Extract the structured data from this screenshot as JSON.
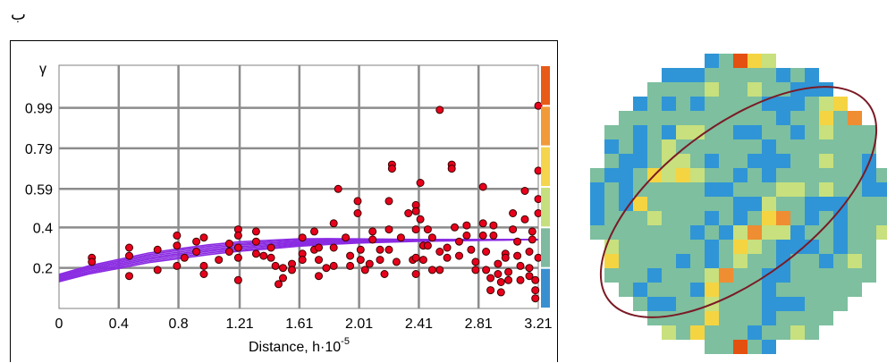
{
  "panel_label": "ب",
  "chart_data": {
    "type": "scatter",
    "title": "",
    "xlabel": "Distance, h·10",
    "xlabel_exponent": "-5",
    "ylabel": "γ",
    "xlim": [
      0,
      3.21
    ],
    "ylim": [
      0,
      1.2
    ],
    "x_ticks": [
      "0",
      "0.4",
      "0.8",
      "1.21",
      "1.61",
      "2.01",
      "2.41",
      "2.81",
      "3.21"
    ],
    "x_tick_values": [
      0,
      0.4,
      0.8,
      1.21,
      1.61,
      2.01,
      2.41,
      2.81,
      3.21
    ],
    "y_ticks": [
      "0.2",
      "0.4",
      "0.59",
      "0.79",
      "0.99"
    ],
    "y_tick_values": [
      0.2,
      0.4,
      0.59,
      0.79,
      0.99
    ],
    "grid": true,
    "point_color": "#e8001c",
    "curve_color": "#8a2be2",
    "points": [
      [
        0.22,
        0.25
      ],
      [
        0.22,
        0.23
      ],
      [
        0.47,
        0.3
      ],
      [
        0.47,
        0.26
      ],
      [
        0.47,
        0.16
      ],
      [
        0.66,
        0.29
      ],
      [
        0.66,
        0.19
      ],
      [
        0.79,
        0.36
      ],
      [
        0.79,
        0.31
      ],
      [
        0.79,
        0.21
      ],
      [
        0.84,
        0.25
      ],
      [
        0.92,
        0.33
      ],
      [
        0.92,
        0.28
      ],
      [
        0.97,
        0.35
      ],
      [
        0.97,
        0.21
      ],
      [
        0.97,
        0.17
      ],
      [
        1.07,
        0.24
      ],
      [
        1.14,
        0.32
      ],
      [
        1.14,
        0.28
      ],
      [
        1.2,
        0.39
      ],
      [
        1.2,
        0.36
      ],
      [
        1.2,
        0.3
      ],
      [
        1.2,
        0.25
      ],
      [
        1.2,
        0.14
      ],
      [
        1.32,
        0.38
      ],
      [
        1.32,
        0.33
      ],
      [
        1.32,
        0.27
      ],
      [
        1.37,
        0.26
      ],
      [
        1.42,
        0.3
      ],
      [
        1.42,
        0.25
      ],
      [
        1.45,
        0.21
      ],
      [
        1.47,
        0.12
      ],
      [
        1.5,
        0.2
      ],
      [
        1.5,
        0.15
      ],
      [
        1.56,
        0.22
      ],
      [
        1.56,
        0.19
      ],
      [
        1.63,
        0.35
      ],
      [
        1.63,
        0.27
      ],
      [
        1.63,
        0.24
      ],
      [
        1.71,
        0.38
      ],
      [
        1.71,
        0.29
      ],
      [
        1.74,
        0.3
      ],
      [
        1.74,
        0.24
      ],
      [
        1.74,
        0.16
      ],
      [
        1.79,
        0.2
      ],
      [
        1.84,
        0.42
      ],
      [
        1.84,
        0.3
      ],
      [
        1.84,
        0.21
      ],
      [
        1.87,
        0.59
      ],
      [
        1.92,
        0.35
      ],
      [
        1.95,
        0.26
      ],
      [
        1.95,
        0.21
      ],
      [
        2.0,
        0.53
      ],
      [
        2.0,
        0.47
      ],
      [
        2.02,
        0.29
      ],
      [
        2.02,
        0.24
      ],
      [
        2.05,
        0.19
      ],
      [
        2.08,
        0.22
      ],
      [
        2.1,
        0.38
      ],
      [
        2.1,
        0.34
      ],
      [
        2.15,
        0.29
      ],
      [
        2.15,
        0.24
      ],
      [
        2.18,
        0.17
      ],
      [
        2.21,
        0.53
      ],
      [
        2.21,
        0.39
      ],
      [
        2.21,
        0.29
      ],
      [
        2.23,
        0.71
      ],
      [
        2.23,
        0.69
      ],
      [
        2.26,
        0.23
      ],
      [
        2.29,
        0.35
      ],
      [
        2.34,
        0.47
      ],
      [
        2.37,
        0.24
      ],
      [
        2.39,
        0.51
      ],
      [
        2.39,
        0.48
      ],
      [
        2.39,
        0.39
      ],
      [
        2.39,
        0.25
      ],
      [
        2.39,
        0.17
      ],
      [
        2.42,
        0.62
      ],
      [
        2.42,
        0.44
      ],
      [
        2.44,
        0.31
      ],
      [
        2.44,
        0.24
      ],
      [
        2.47,
        0.39
      ],
      [
        2.47,
        0.31
      ],
      [
        2.5,
        0.35
      ],
      [
        2.5,
        0.19
      ],
      [
        2.55,
        0.98
      ],
      [
        2.55,
        0.28
      ],
      [
        2.55,
        0.19
      ],
      [
        2.6,
        0.3
      ],
      [
        2.6,
        0.25
      ],
      [
        2.63,
        0.71
      ],
      [
        2.63,
        0.69
      ],
      [
        2.65,
        0.4
      ],
      [
        2.68,
        0.33
      ],
      [
        2.68,
        0.26
      ],
      [
        2.73,
        0.41
      ],
      [
        2.73,
        0.36
      ],
      [
        2.76,
        0.29
      ],
      [
        2.79,
        0.23
      ],
      [
        2.79,
        0.19
      ],
      [
        2.84,
        0.6
      ],
      [
        2.84,
        0.42
      ],
      [
        2.84,
        0.36
      ],
      [
        2.86,
        0.28
      ],
      [
        2.86,
        0.19
      ],
      [
        2.89,
        0.15
      ],
      [
        2.89,
        0.09
      ],
      [
        2.91,
        0.41
      ],
      [
        2.91,
        0.36
      ],
      [
        2.94,
        0.22
      ],
      [
        2.94,
        0.17
      ],
      [
        2.96,
        0.13
      ],
      [
        2.96,
        0.08
      ],
      [
        2.99,
        0.27
      ],
      [
        2.99,
        0.25
      ],
      [
        3.01,
        0.18
      ],
      [
        3.01,
        0.14
      ],
      [
        3.04,
        0.47
      ],
      [
        3.04,
        0.39
      ],
      [
        3.07,
        0.33
      ],
      [
        3.07,
        0.26
      ],
      [
        3.09,
        0.21
      ],
      [
        3.09,
        0.14
      ],
      [
        3.12,
        0.58
      ],
      [
        3.12,
        0.44
      ],
      [
        3.15,
        0.28
      ],
      [
        3.15,
        0.2
      ],
      [
        3.15,
        0.16
      ],
      [
        3.17,
        0.38
      ],
      [
        3.17,
        0.34
      ],
      [
        3.19,
        0.14
      ],
      [
        3.19,
        0.09
      ],
      [
        3.19,
        0.05
      ],
      [
        3.21,
        0.25
      ],
      [
        3.21,
        0.47
      ],
      [
        3.21,
        0.54
      ],
      [
        3.21,
        0.68
      ],
      [
        3.21,
        1.0
      ]
    ],
    "curve_samples": [
      [
        0.0,
        0.15
      ],
      [
        0.2,
        0.19
      ],
      [
        0.4,
        0.22
      ],
      [
        0.6,
        0.25
      ],
      [
        0.8,
        0.27
      ],
      [
        1.0,
        0.29
      ],
      [
        1.2,
        0.305
      ],
      [
        1.4,
        0.315
      ],
      [
        1.6,
        0.325
      ],
      [
        1.8,
        0.33
      ],
      [
        2.0,
        0.333
      ],
      [
        2.4,
        0.336
      ],
      [
        2.8,
        0.338
      ],
      [
        3.21,
        0.34
      ]
    ],
    "colorbar_colors": [
      "#3a8fd1",
      "#7dbaa0",
      "#c6df7e",
      "#f4d54d",
      "#f09a3a",
      "#e85a17"
    ]
  },
  "map": {
    "palette": {
      "blue": "#2f95d6",
      "green": "#7dbf9f",
      "lime": "#c8e07d",
      "yellow": "#f5d442",
      "orange": "#ef8d32",
      "red": "#e4500f",
      "ellipse": "#7a1a25"
    }
  }
}
